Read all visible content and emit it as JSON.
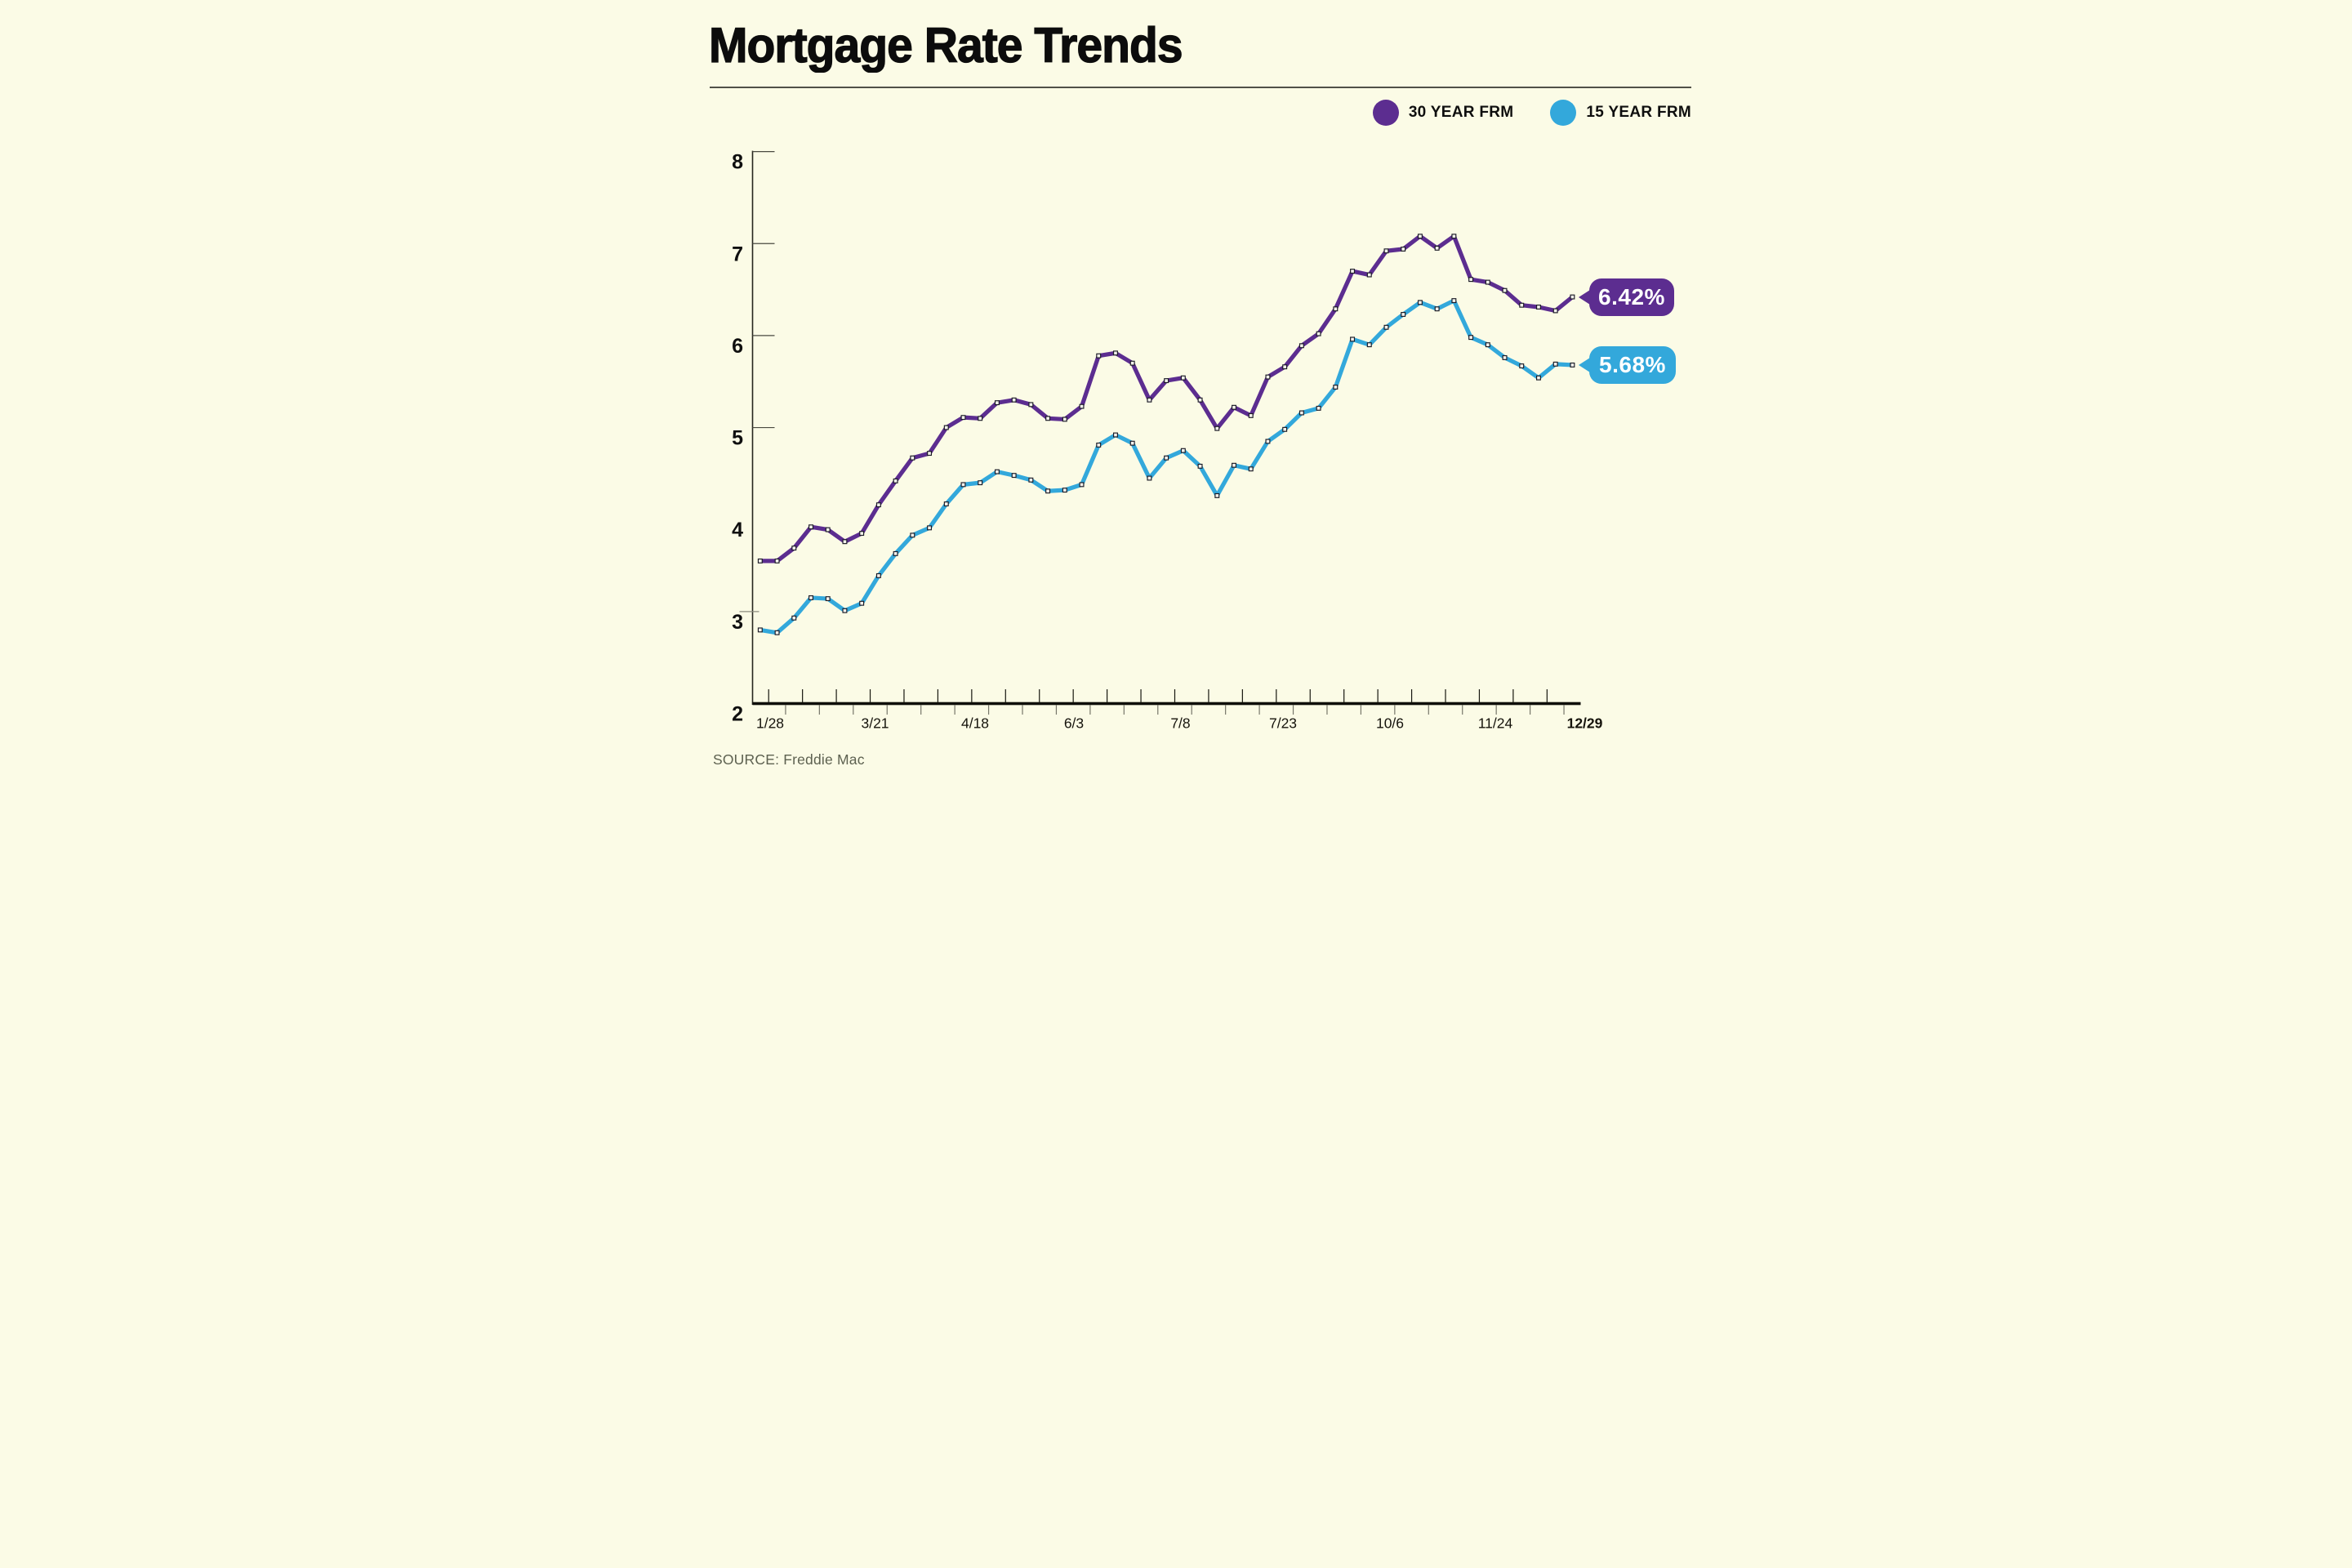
{
  "page": {
    "background": "#fbfbe6",
    "accent_purple": "#5c2d90",
    "accent_blue": "#33a8db"
  },
  "header": {
    "title": "Mortgage Rate Trends"
  },
  "legend": {
    "items": [
      {
        "label": "30 YEAR FRM",
        "color": "#5c2d90"
      },
      {
        "label": "15 YEAR FRM",
        "color": "#33a8db"
      }
    ]
  },
  "chart_data": {
    "type": "line",
    "title": "Mortgage Rate Trends",
    "ylim": [
      2,
      8
    ],
    "y_ticks": [
      2,
      3,
      4,
      5,
      6,
      7,
      8
    ],
    "x_tick_labels": [
      "1/28",
      "3/21",
      "4/18",
      "6/3",
      "7/8",
      "7/23",
      "10/6",
      "11/24",
      "12/29"
    ],
    "grid": false,
    "legend_position": "top-right",
    "markers": "square",
    "series": [
      {
        "name": "30 YEAR FRM",
        "color": "#5c2d90",
        "end_label": "6.42%",
        "values": [
          3.55,
          3.55,
          3.69,
          3.92,
          3.89,
          3.76,
          3.85,
          4.16,
          4.42,
          4.67,
          4.72,
          5.0,
          5.11,
          5.1,
          5.27,
          5.3,
          5.25,
          5.1,
          5.09,
          5.23,
          5.78,
          5.81,
          5.7,
          5.3,
          5.51,
          5.54,
          5.3,
          4.99,
          5.22,
          5.13,
          5.55,
          5.66,
          5.89,
          6.02,
          6.29,
          6.7,
          6.66,
          6.92,
          6.94,
          7.08,
          6.95,
          7.08,
          6.61,
          6.58,
          6.49,
          6.33,
          6.31,
          6.27,
          6.42
        ]
      },
      {
        "name": "15 YEAR FRM",
        "color": "#33a8db",
        "end_label": "5.68%",
        "values": [
          2.8,
          2.77,
          2.93,
          3.15,
          3.14,
          3.01,
          3.09,
          3.39,
          3.63,
          3.83,
          3.91,
          4.17,
          4.38,
          4.4,
          4.52,
          4.48,
          4.43,
          4.31,
          4.32,
          4.38,
          4.81,
          4.92,
          4.83,
          4.45,
          4.67,
          4.75,
          4.58,
          4.26,
          4.59,
          4.55,
          4.85,
          4.98,
          5.16,
          5.21,
          5.44,
          5.96,
          5.9,
          6.09,
          6.23,
          6.36,
          6.29,
          6.38,
          5.98,
          5.9,
          5.76,
          5.67,
          5.54,
          5.69,
          5.68
        ]
      }
    ],
    "source": "SOURCE: Freddie Mac"
  },
  "source": {
    "text": "SOURCE: Freddie Mac"
  }
}
